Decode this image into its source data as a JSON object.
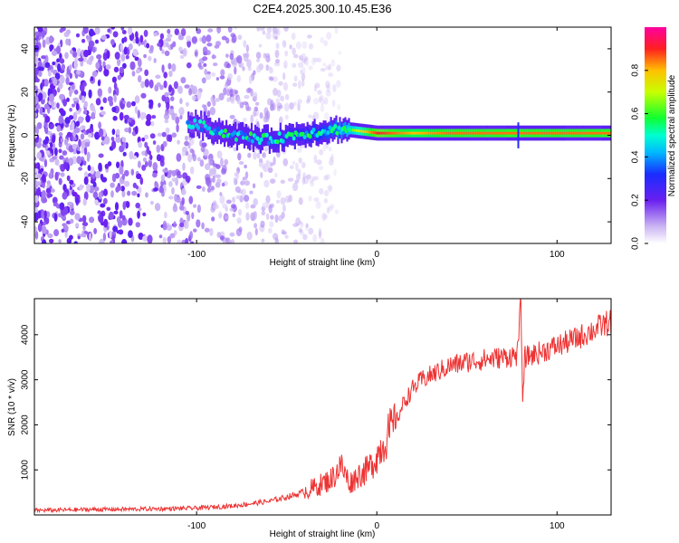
{
  "title": "C2E4.2025.300.10.45.E36",
  "chart_data": [
    {
      "type": "heatmap",
      "name": "spectrogram",
      "xlabel": "Height of straight line (km)",
      "ylabel": "Frequency (Hz)",
      "xlim": [
        -190,
        130
      ],
      "ylim": [
        -50,
        50
      ],
      "x_ticks": [
        -100,
        0,
        100
      ],
      "x_tick_labels": [
        "-100",
        "0",
        "100"
      ],
      "y_ticks": [
        -40,
        -20,
        0,
        20,
        40
      ],
      "y_tick_labels": [
        "-40",
        "-20",
        "0",
        "20",
        "40"
      ],
      "colorbar": {
        "label": "Normalized spectral amplitude",
        "range": [
          0,
          1
        ],
        "ticks": [
          0.0,
          0.2,
          0.4,
          0.6,
          0.8
        ],
        "tick_labels": [
          "0.0",
          "0.2",
          "0.4",
          "0.6",
          "0.8"
        ]
      },
      "ridge": {
        "description_values": "dominant frequency ridge near 0 Hz from about -100 km to 130 km",
        "x": [
          -100,
          -80,
          -60,
          -40,
          -20,
          0,
          20,
          40,
          60,
          80,
          100,
          130
        ],
        "frequency": [
          5,
          0,
          -2,
          1,
          3,
          1,
          1,
          1,
          1,
          1,
          1,
          1
        ],
        "amplitude": [
          0.25,
          0.3,
          0.35,
          0.4,
          0.55,
          0.9,
          0.8,
          0.85,
          0.85,
          0.85,
          0.85,
          0.85
        ]
      }
    },
    {
      "type": "line",
      "name": "snr",
      "xlabel": "Height of straight line (km)",
      "ylabel": "SNR (10 * v/v)",
      "xlim": [
        -190,
        130
      ],
      "ylim": [
        0,
        4800
      ],
      "x_ticks": [
        -100,
        0,
        100
      ],
      "x_tick_labels": [
        "-100",
        "0",
        "100"
      ],
      "y_ticks": [
        1000,
        2000,
        3000,
        4000
      ],
      "y_tick_labels": [
        "1000",
        "2000",
        "3000",
        "4000"
      ],
      "series": [
        {
          "name": "SNR",
          "color": "#ee3333",
          "x": [
            -190,
            -160,
            -130,
            -100,
            -80,
            -60,
            -45,
            -35,
            -25,
            -20,
            -15,
            -10,
            -5,
            0,
            5,
            10,
            15,
            20,
            25,
            30,
            40,
            50,
            60,
            70,
            78,
            80,
            81,
            82,
            90,
            100,
            110,
            120,
            130
          ],
          "y": [
            100,
            120,
            130,
            150,
            200,
            300,
            450,
            600,
            800,
            1100,
            700,
            900,
            1000,
            1300,
            1700,
            2000,
            2500,
            2800,
            3000,
            3100,
            3300,
            3400,
            3450,
            3500,
            3550,
            4700,
            2400,
            3500,
            3600,
            3750,
            3900,
            4100,
            4300
          ]
        }
      ]
    }
  ]
}
